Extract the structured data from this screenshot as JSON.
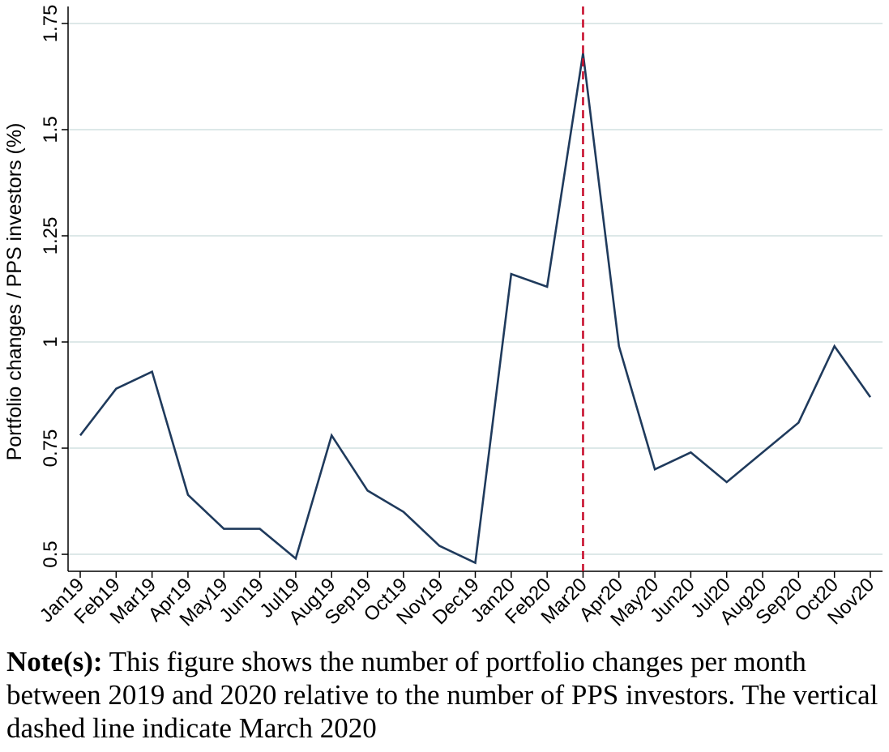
{
  "chart_data": {
    "type": "line",
    "title": "",
    "xlabel": "",
    "ylabel": "Portfolio changes / PPS investors (%)",
    "categories": [
      "Jan19",
      "Feb19",
      "Mar19",
      "Apr19",
      "May19",
      "Jun19",
      "Jul19",
      "Aug19",
      "Sep19",
      "Oct19",
      "Nov19",
      "Dec19",
      "Jan20",
      "Feb20",
      "Mar20",
      "Apr20",
      "May20",
      "Jun20",
      "Jul20",
      "Aug20",
      "Sep20",
      "Oct20",
      "Nov20"
    ],
    "series": [
      {
        "values": [
          0.78,
          0.89,
          0.93,
          0.64,
          0.56,
          0.56,
          0.49,
          0.78,
          0.65,
          0.6,
          0.52,
          0.48,
          1.16,
          1.13,
          1.68,
          0.99,
          0.7,
          0.74,
          0.67,
          0.74,
          0.81,
          0.99,
          0.87
        ]
      }
    ],
    "yticks": [
      "0.5",
      "0.75",
      "1",
      "1.25",
      "1.5",
      "1.75"
    ],
    "yticks_values": [
      0.5,
      0.75,
      1.0,
      1.25,
      1.5,
      1.75
    ],
    "ylim": [
      0.46,
      1.79
    ],
    "vline": {
      "category": "Mar20",
      "style": "dashed",
      "color": "#c8102e"
    },
    "colors": {
      "line": "#1f3a5c",
      "grid": "#dde8e8",
      "vline": "#c8102e"
    },
    "grid": true,
    "legend": "none"
  },
  "note": {
    "label": "Note(s):",
    "text": " This figure shows the number of portfolio changes per month between 2019 and 2020 relative to the number of PPS investors. The vertical dashed line indicate March 2020"
  }
}
